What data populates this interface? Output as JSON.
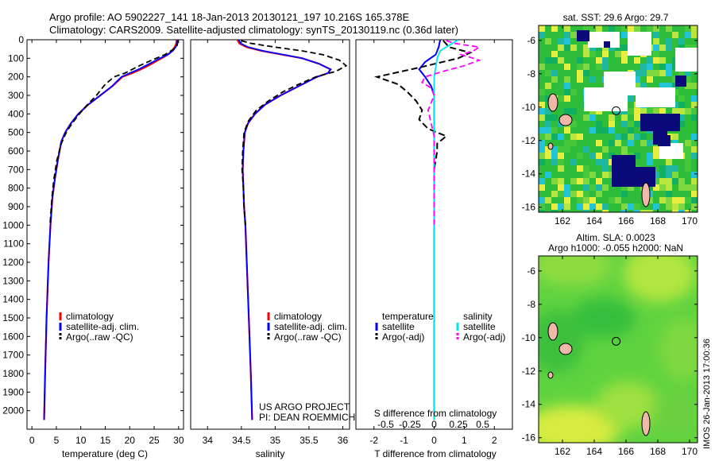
{
  "header": {
    "line1": "Argo profile: AO 5902227_141 18-Jan-2013 20130121_197 10.216S 165.378E",
    "line2": "Climatology: CARS2009. Satellite-adjusted climatology: synTS_20130119.nc (0.36d later)"
  },
  "side_label": "IMOS 26-Jan-2013 17:00:36",
  "footer": {
    "project": "US ARGO PROJECT",
    "pi": "PI: DEAN ROEMMICH"
  },
  "colors": {
    "climatology": "#ff0000",
    "satellite": "#0000ff",
    "argo": "#000000",
    "satellite_s": "#00e5ee",
    "argo_s": "#ff00ff"
  },
  "chart_data": [
    {
      "type": "line",
      "name": "temperature_profile",
      "xlabel": "temperature (deg C)",
      "ylabel": "",
      "xlim": [
        -1,
        31
      ],
      "ylim": [
        0,
        2100
      ],
      "xticks": [
        0,
        5,
        10,
        15,
        20,
        25,
        30
      ],
      "yticks": [
        0,
        100,
        200,
        300,
        400,
        500,
        600,
        700,
        800,
        900,
        1000,
        1100,
        1200,
        1300,
        1400,
        1500,
        1600,
        1700,
        1800,
        1900,
        2000
      ],
      "legend": [
        "climatology",
        "satellite-adj. clim.",
        "Argo(..raw -QC)"
      ],
      "legend_position": "lower-center",
      "series": [
        {
          "name": "climatology",
          "points": [
            [
              29.6,
              0
            ],
            [
              29.5,
              20
            ],
            [
              29.2,
              40
            ],
            [
              28.6,
              60
            ],
            [
              27.8,
              80
            ],
            [
              26.5,
              100
            ],
            [
              24.5,
              130
            ],
            [
              22.3,
              160
            ],
            [
              20.5,
              180
            ],
            [
              18.5,
              200
            ],
            [
              16.5,
              250
            ],
            [
              14.0,
              300
            ],
            [
              11.5,
              350
            ],
            [
              9.5,
              400
            ],
            [
              8.0,
              450
            ],
            [
              6.8,
              500
            ],
            [
              6.0,
              550
            ],
            [
              5.3,
              650
            ],
            [
              4.7,
              750
            ],
            [
              4.2,
              850
            ],
            [
              3.8,
              1000
            ],
            [
              3.4,
              1200
            ],
            [
              3.0,
              1500
            ],
            [
              2.7,
              1800
            ],
            [
              2.5,
              2050
            ]
          ]
        },
        {
          "name": "satellite-adj. clim.",
          "points": [
            [
              29.8,
              0
            ],
            [
              29.7,
              20
            ],
            [
              29.4,
              40
            ],
            [
              28.8,
              60
            ],
            [
              27.8,
              80
            ],
            [
              26.2,
              100
            ],
            [
              24.0,
              130
            ],
            [
              21.8,
              160
            ],
            [
              20.0,
              180
            ],
            [
              18.3,
              200
            ],
            [
              16.4,
              250
            ],
            [
              14.0,
              300
            ],
            [
              11.5,
              350
            ],
            [
              9.5,
              400
            ],
            [
              8.0,
              450
            ],
            [
              6.8,
              500
            ],
            [
              6.0,
              550
            ],
            [
              5.3,
              650
            ],
            [
              4.7,
              750
            ],
            [
              4.2,
              850
            ],
            [
              3.8,
              1000
            ],
            [
              3.4,
              1200
            ],
            [
              3.0,
              1500
            ],
            [
              2.7,
              1800
            ],
            [
              2.5,
              2050
            ]
          ]
        },
        {
          "name": "Argo(..raw -QC)",
          "points": [
            [
              29.9,
              5
            ],
            [
              29.7,
              30
            ],
            [
              29.0,
              50
            ],
            [
              27.2,
              80
            ],
            [
              24.5,
              110
            ],
            [
              22.0,
              140
            ],
            [
              20.5,
              160
            ],
            [
              19.0,
              180
            ],
            [
              16.8,
              200
            ],
            [
              15.0,
              240
            ],
            [
              13.2,
              300
            ],
            [
              11.0,
              360
            ],
            [
              9.4,
              410
            ],
            [
              8.0,
              460
            ],
            [
              7.0,
              500
            ],
            [
              6.0,
              560
            ],
            [
              5.1,
              650
            ],
            [
              4.5,
              750
            ],
            [
              4.1,
              850
            ],
            [
              3.7,
              1000
            ]
          ]
        }
      ]
    },
    {
      "type": "line",
      "name": "salinity_profile",
      "xlabel": "salinity",
      "ylabel": "",
      "xlim": [
        33.75,
        36.1
      ],
      "ylim": [
        0,
        2100
      ],
      "xticks": [
        34,
        34.5,
        35,
        35.5,
        36
      ],
      "legend": [
        "climatology",
        "satellite-adj. clim.",
        "Argo(..raw -QC)"
      ],
      "legend_position": "lower-center",
      "series": [
        {
          "name": "climatology",
          "points": [
            [
              34.44,
              0
            ],
            [
              34.47,
              20
            ],
            [
              34.58,
              40
            ],
            [
              34.8,
              60
            ],
            [
              35.1,
              80
            ],
            [
              35.4,
              100
            ],
            [
              35.65,
              130
            ],
            [
              35.82,
              160
            ],
            [
              35.78,
              180
            ],
            [
              35.62,
              200
            ],
            [
              35.35,
              250
            ],
            [
              35.08,
              300
            ],
            [
              34.85,
              350
            ],
            [
              34.7,
              400
            ],
            [
              34.6,
              450
            ],
            [
              34.55,
              500
            ],
            [
              34.53,
              600
            ],
            [
              34.52,
              700
            ],
            [
              34.53,
              800
            ],
            [
              34.54,
              900
            ],
            [
              34.56,
              1000
            ],
            [
              34.58,
              1200
            ],
            [
              34.61,
              1500
            ],
            [
              34.64,
              1800
            ],
            [
              34.66,
              2050
            ]
          ]
        },
        {
          "name": "satellite-adj. clim.",
          "points": [
            [
              34.46,
              0
            ],
            [
              34.49,
              20
            ],
            [
              34.6,
              40
            ],
            [
              34.82,
              60
            ],
            [
              35.12,
              80
            ],
            [
              35.4,
              100
            ],
            [
              35.65,
              130
            ],
            [
              35.82,
              160
            ],
            [
              35.78,
              180
            ],
            [
              35.62,
              200
            ],
            [
              35.35,
              250
            ],
            [
              35.08,
              300
            ],
            [
              34.85,
              350
            ],
            [
              34.7,
              400
            ],
            [
              34.6,
              450
            ],
            [
              34.55,
              500
            ],
            [
              34.53,
              600
            ],
            [
              34.52,
              700
            ],
            [
              34.53,
              800
            ],
            [
              34.54,
              900
            ],
            [
              34.56,
              1000
            ],
            [
              34.58,
              1200
            ],
            [
              34.61,
              1500
            ],
            [
              34.64,
              1800
            ],
            [
              34.66,
              2050
            ]
          ]
        },
        {
          "name": "Argo(..raw -QC)",
          "points": [
            [
              34.5,
              5
            ],
            [
              34.65,
              20
            ],
            [
              35.0,
              40
            ],
            [
              35.4,
              60
            ],
            [
              35.7,
              80
            ],
            [
              35.95,
              110
            ],
            [
              36.05,
              140
            ],
            [
              35.9,
              170
            ],
            [
              35.6,
              200
            ],
            [
              35.35,
              240
            ],
            [
              35.12,
              280
            ],
            [
              34.9,
              330
            ],
            [
              34.72,
              380
            ],
            [
              34.6,
              440
            ],
            [
              34.54,
              500
            ],
            [
              34.52,
              600
            ],
            [
              34.51,
              700
            ],
            [
              34.53,
              800
            ],
            [
              34.54,
              900
            ],
            [
              34.56,
              1000
            ]
          ]
        }
      ]
    },
    {
      "type": "line",
      "name": "difference_profile",
      "xlabel": "T difference from climatology",
      "ylabel": "",
      "top_label": "S difference from climatology",
      "xlim": [
        -2.6,
        2.6
      ],
      "ylim": [
        0,
        2100
      ],
      "xticks_T": [
        -2,
        -1,
        0,
        1,
        2
      ],
      "xticks_S": [
        -0.5,
        -0.25,
        0,
        0.25,
        0.5
      ],
      "legend_titles": [
        "temperature",
        "salinity"
      ],
      "legend": [
        "satellite",
        "Argo(-adj)",
        "satellite",
        "Argo(-adj)"
      ],
      "legend_position": "lower-center",
      "series": [
        {
          "name": "temperature satellite",
          "points": [
            [
              0.2,
              0
            ],
            [
              0.15,
              40
            ],
            [
              0.05,
              80
            ],
            [
              -0.3,
              120
            ],
            [
              -0.5,
              160
            ],
            [
              -0.3,
              200
            ],
            [
              -0.1,
              250
            ],
            [
              0.0,
              300
            ],
            [
              0.0,
              400
            ],
            [
              0.0,
              500
            ],
            [
              0.0,
              700
            ],
            [
              0.0,
              1000
            ],
            [
              0.0,
              1500
            ],
            [
              0.0,
              2050
            ]
          ]
        },
        {
          "name": "temperature Argo(-adj)",
          "points": [
            [
              0.3,
              5
            ],
            [
              0.5,
              40
            ],
            [
              1.2,
              70
            ],
            [
              0.8,
              100
            ],
            [
              -0.5,
              150
            ],
            [
              -1.9,
              200
            ],
            [
              -1.2,
              240
            ],
            [
              -0.9,
              280
            ],
            [
              -0.6,
              330
            ],
            [
              -0.4,
              380
            ],
            [
              -0.5,
              430
            ],
            [
              -0.2,
              480
            ],
            [
              0.4,
              520
            ],
            [
              0.1,
              560
            ],
            [
              0.1,
              600
            ],
            [
              0.0,
              700
            ],
            [
              0.0,
              800
            ],
            [
              0.0,
              900
            ],
            [
              0.0,
              1000
            ]
          ]
        },
        {
          "name": "salinity satellite",
          "points": [
            [
              0.8,
              0
            ],
            [
              0.6,
              20
            ],
            [
              0.4,
              40
            ],
            [
              0.2,
              60
            ],
            [
              0.1,
              100
            ],
            [
              0.0,
              200
            ],
            [
              0.0,
              400
            ],
            [
              0.0,
              700
            ],
            [
              0.0,
              1000
            ],
            [
              0.0,
              1500
            ],
            [
              0.0,
              2050
            ]
          ]
        },
        {
          "name": "salinity Argo(-adj)",
          "points": [
            [
              0.4,
              5
            ],
            [
              0.7,
              20
            ],
            [
              1.5,
              40
            ],
            [
              1.3,
              60
            ],
            [
              0.9,
              80
            ],
            [
              1.5,
              110
            ],
            [
              1.0,
              140
            ],
            [
              0.3,
              170
            ],
            [
              -0.3,
              200
            ],
            [
              -0.4,
              230
            ],
            [
              -0.1,
              260
            ],
            [
              0.0,
              300
            ],
            [
              -0.2,
              380
            ],
            [
              -0.1,
              450
            ],
            [
              0.0,
              520
            ],
            [
              0.0,
              700
            ],
            [
              0.0,
              1000
            ]
          ]
        }
      ]
    },
    {
      "type": "heatmap",
      "name": "sst_map",
      "title": "sat. SST: 29.6 Argo: 29.7",
      "xlim": [
        160.5,
        170.5
      ],
      "ylim": [
        -16.3,
        -5.1
      ],
      "xticks": [
        162,
        164,
        166,
        168,
        170
      ],
      "yticks": [
        -6,
        -8,
        -10,
        -12,
        -14,
        -16
      ],
      "argo_position": [
        165.378,
        -10.216
      ]
    },
    {
      "type": "heatmap",
      "name": "sla_map",
      "title": "Altim. SLA: 0.0023",
      "subtitle": "Argo h1000: -0.055 h2000: NaN",
      "xlim": [
        160.5,
        170.5
      ],
      "ylim": [
        -16.3,
        -5.1
      ],
      "xticks": [
        162,
        164,
        166,
        168,
        170
      ],
      "yticks": [
        -6,
        -8,
        -10,
        -12,
        -14,
        -16
      ],
      "argo_position": [
        165.378,
        -10.216
      ]
    }
  ]
}
